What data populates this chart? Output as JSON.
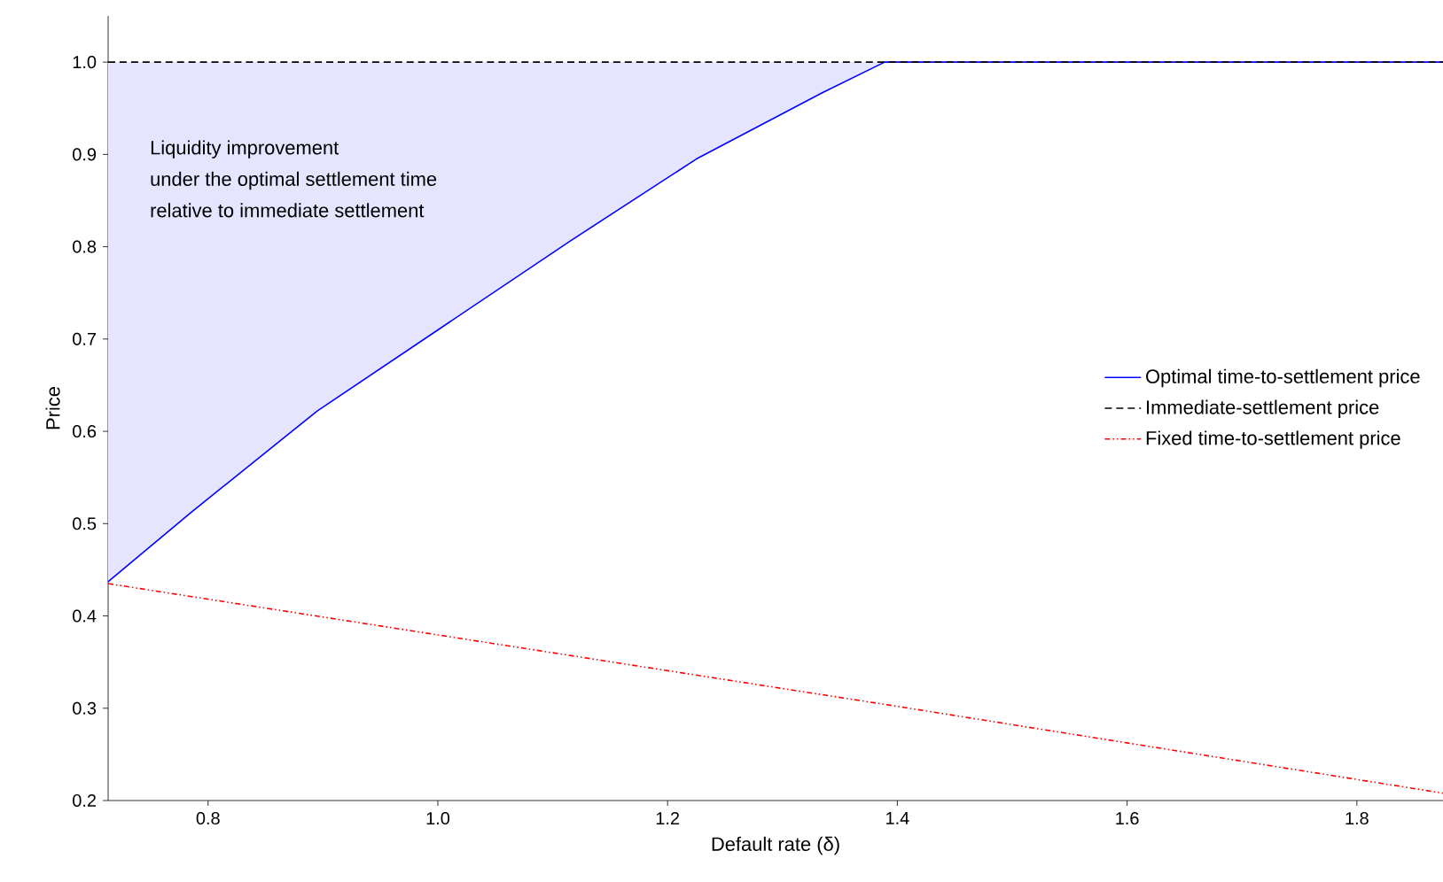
{
  "chart_data": {
    "type": "line",
    "xlabel": "Default rate (δ)",
    "ylabel": "Price",
    "annotations": [
      "Liquidity improvement",
      "under the optimal settlement time",
      "relative to immediate settlement"
    ],
    "series": [
      {
        "name": "Optimal time-to-settlement price",
        "color": "#0000ff",
        "line_style": "solid",
        "x": [
          0.713,
          0.785,
          0.895,
          1.005,
          1.115,
          1.225,
          1.335,
          1.389,
          1.875
        ],
        "values": [
          0.437,
          0.512,
          0.622,
          0.714,
          0.806,
          0.895,
          0.967,
          1.0,
          1.0
        ]
      },
      {
        "name": "Immediate-settlement price",
        "color": "#000000",
        "line_style": "dashed",
        "x": [
          0.713,
          1.875
        ],
        "values": [
          1.0,
          1.0
        ]
      },
      {
        "name": "Fixed time-to-settlement price",
        "color": "#ff0000",
        "line_style": "dotted",
        "x": [
          0.713,
          1.4,
          1.875
        ],
        "values": [
          0.435,
          0.302,
          0.208
        ]
      }
    ],
    "xlim": [
      0.713,
      1.875
    ],
    "ylim": [
      0.2,
      1.05
    ],
    "xticks": [
      0.8,
      {
        "value": 1.0,
        "label": "1.0"
      },
      1.2,
      1.4,
      1.6,
      1.8
    ],
    "yticks": [
      0.2,
      0.3,
      0.4,
      0.5,
      0.6,
      0.7,
      0.8,
      0.9,
      {
        "value": 1.0,
        "label": "1.0"
      }
    ],
    "grid": false,
    "legend": "right",
    "marker": "none"
  }
}
